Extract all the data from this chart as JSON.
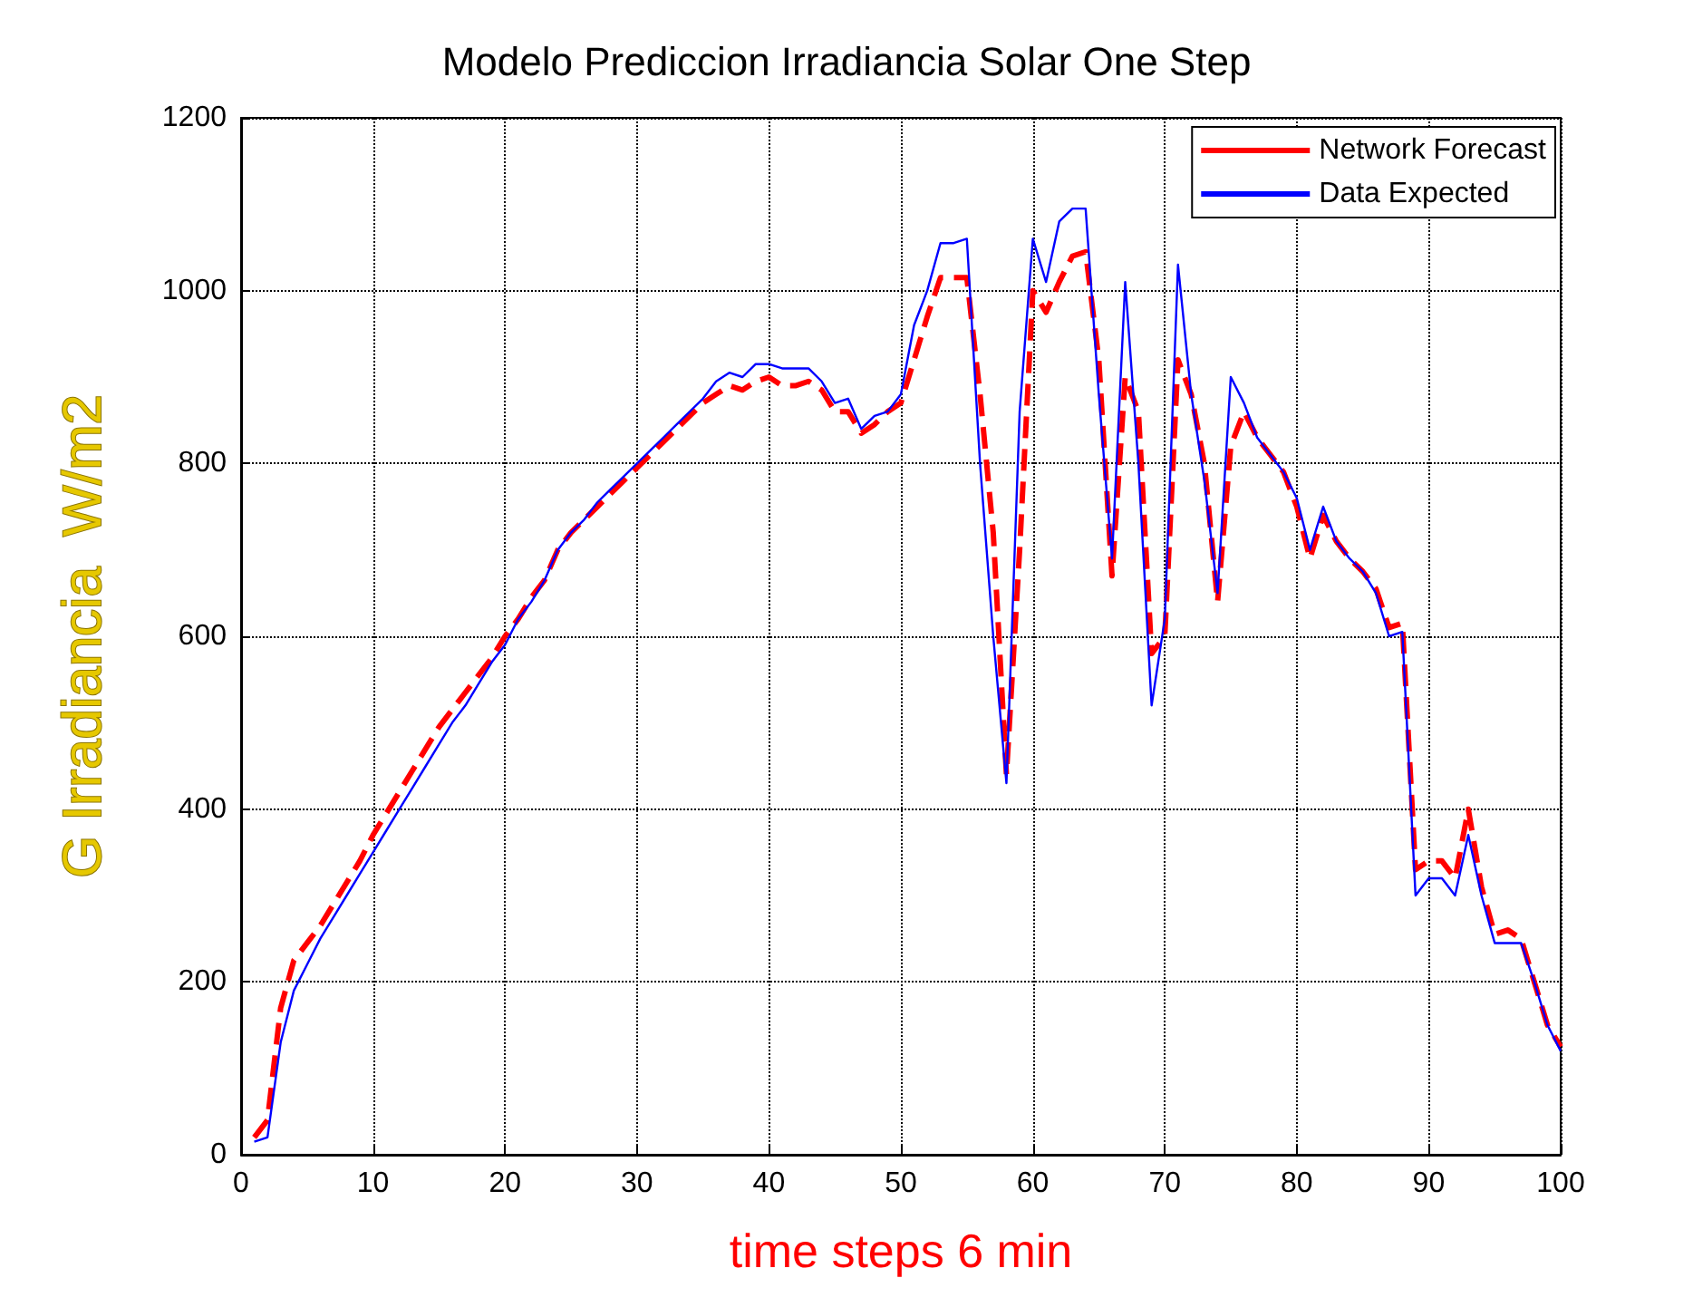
{
  "chart_data": {
    "type": "line",
    "title": "Modelo Prediccion Irradiancia Solar One Step",
    "xlabel": "time steps 6 min",
    "ylabel": "G Irradiancia  W/m2",
    "x": [
      1,
      2,
      3,
      4,
      5,
      6,
      7,
      8,
      9,
      10,
      11,
      12,
      13,
      14,
      15,
      16,
      17,
      18,
      19,
      20,
      21,
      22,
      23,
      24,
      25,
      26,
      27,
      28,
      29,
      30,
      31,
      32,
      33,
      34,
      35,
      36,
      37,
      38,
      39,
      40,
      41,
      42,
      43,
      44,
      45,
      46,
      47,
      48,
      49,
      50,
      51,
      52,
      53,
      54,
      55,
      56,
      57,
      58,
      59,
      60,
      61,
      62,
      63,
      64,
      65,
      66,
      67,
      68,
      69,
      70,
      71,
      72,
      73,
      74,
      75,
      76,
      77,
      78,
      79,
      80,
      81,
      82,
      83,
      84,
      85,
      86,
      87,
      88,
      89,
      90,
      91,
      92,
      93,
      94,
      95,
      96,
      97,
      98,
      99,
      100
    ],
    "series": [
      {
        "name": "Network Forecast",
        "color": "#ff0000",
        "line_style": "dashed",
        "values": [
          20,
          40,
          170,
          225,
          245,
          265,
          290,
          315,
          340,
          370,
          395,
          420,
          445,
          470,
          495,
          515,
          535,
          555,
          575,
          600,
          620,
          645,
          665,
          700,
          720,
          735,
          750,
          765,
          780,
          795,
          810,
          825,
          840,
          855,
          870,
          880,
          890,
          885,
          895,
          900,
          890,
          890,
          895,
          885,
          860,
          860,
          835,
          845,
          860,
          870,
          920,
          970,
          1015,
          1015,
          1015,
          880,
          720,
          440,
          700,
          1000,
          975,
          1010,
          1040,
          1045,
          920,
          670,
          900,
          860,
          580,
          600,
          920,
          880,
          800,
          640,
          820,
          860,
          830,
          810,
          790,
          750,
          690,
          740,
          710,
          690,
          675,
          655,
          610,
          615,
          330,
          340,
          340,
          320,
          400,
          310,
          255,
          260,
          250,
          200,
          150,
          125
        ]
      },
      {
        "name": "Data Expected",
        "color": "#0000ff",
        "line_style": "solid",
        "values": [
          15,
          20,
          130,
          190,
          220,
          250,
          275,
          300,
          325,
          350,
          375,
          400,
          425,
          450,
          475,
          500,
          520,
          545,
          570,
          590,
          620,
          640,
          665,
          700,
          720,
          735,
          755,
          770,
          785,
          800,
          815,
          830,
          845,
          860,
          875,
          895,
          905,
          900,
          915,
          915,
          910,
          910,
          910,
          895,
          870,
          875,
          840,
          855,
          860,
          880,
          960,
          1000,
          1055,
          1055,
          1060,
          800,
          600,
          430,
          860,
          1060,
          1010,
          1080,
          1095,
          1095,
          880,
          690,
          1010,
          800,
          520,
          620,
          1030,
          880,
          780,
          650,
          900,
          870,
          830,
          810,
          790,
          760,
          700,
          750,
          710,
          690,
          675,
          650,
          600,
          605,
          300,
          320,
          320,
          300,
          370,
          300,
          245,
          245,
          245,
          200,
          150,
          120
        ]
      }
    ],
    "xlim": [
      0,
      100
    ],
    "xticks": [
      0,
      10,
      20,
      30,
      40,
      50,
      60,
      70,
      80,
      90,
      100
    ],
    "ylim": [
      0,
      1200
    ],
    "yticks": [
      0,
      200,
      400,
      600,
      800,
      1000,
      1200
    ],
    "grid": true,
    "legend": "top right",
    "marker": "none"
  }
}
